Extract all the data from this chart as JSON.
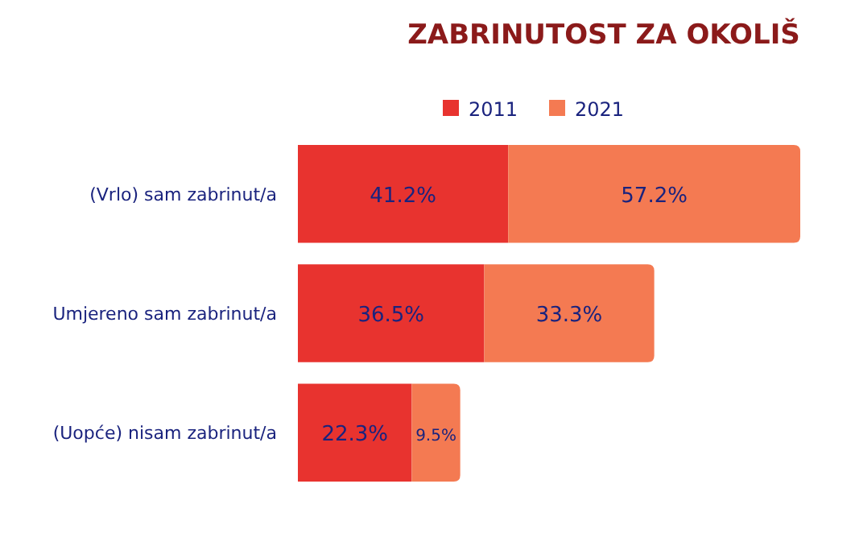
{
  "chart_data": {
    "type": "bar",
    "title": "ZABRINUTOST ZA OKOLIŠ",
    "orientation": "horizontal",
    "stacked": true,
    "legend": "top",
    "categories": [
      "(Vrlo) sam zabrinut/a",
      "Umjereno sam zabrinut/a",
      "(Uopće) nisam zabrinut/a"
    ],
    "series": [
      {
        "name": "2011",
        "color": "#e8332f",
        "values": [
          41.2,
          36.5,
          22.3
        ],
        "value_labels": [
          "41.2%",
          "36.5%",
          "22.3%"
        ]
      },
      {
        "name": "2021",
        "color": "#f47a52",
        "values": [
          57.2,
          33.3,
          9.5
        ],
        "value_labels": [
          "57.2%",
          "33.3%",
          "9.5%"
        ]
      }
    ]
  }
}
